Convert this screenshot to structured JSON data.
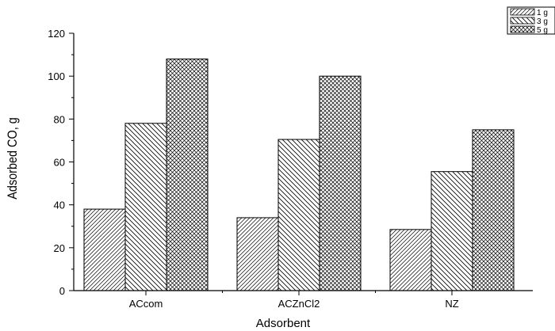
{
  "chart_data": {
    "type": "bar",
    "title": "",
    "xlabel": "Adsorbent",
    "ylabel": "Adsorbed CO, g",
    "categories": [
      "ACcom",
      "ACZnCl2",
      "NZ"
    ],
    "ylim": [
      0,
      120
    ],
    "yticks": [
      0,
      20,
      40,
      60,
      80,
      100,
      120
    ],
    "grid": false,
    "legend_position": "top-right",
    "series": [
      {
        "name": "1 g",
        "values": [
          38,
          34,
          28.5
        ],
        "fill": "diagonal-hatch-right"
      },
      {
        "name": "3 g",
        "values": [
          78,
          70.5,
          55.5
        ],
        "fill": "diagonal-hatch-left"
      },
      {
        "name": "5 g",
        "values": [
          108,
          100,
          75
        ],
        "fill": "crosshatch"
      }
    ]
  }
}
